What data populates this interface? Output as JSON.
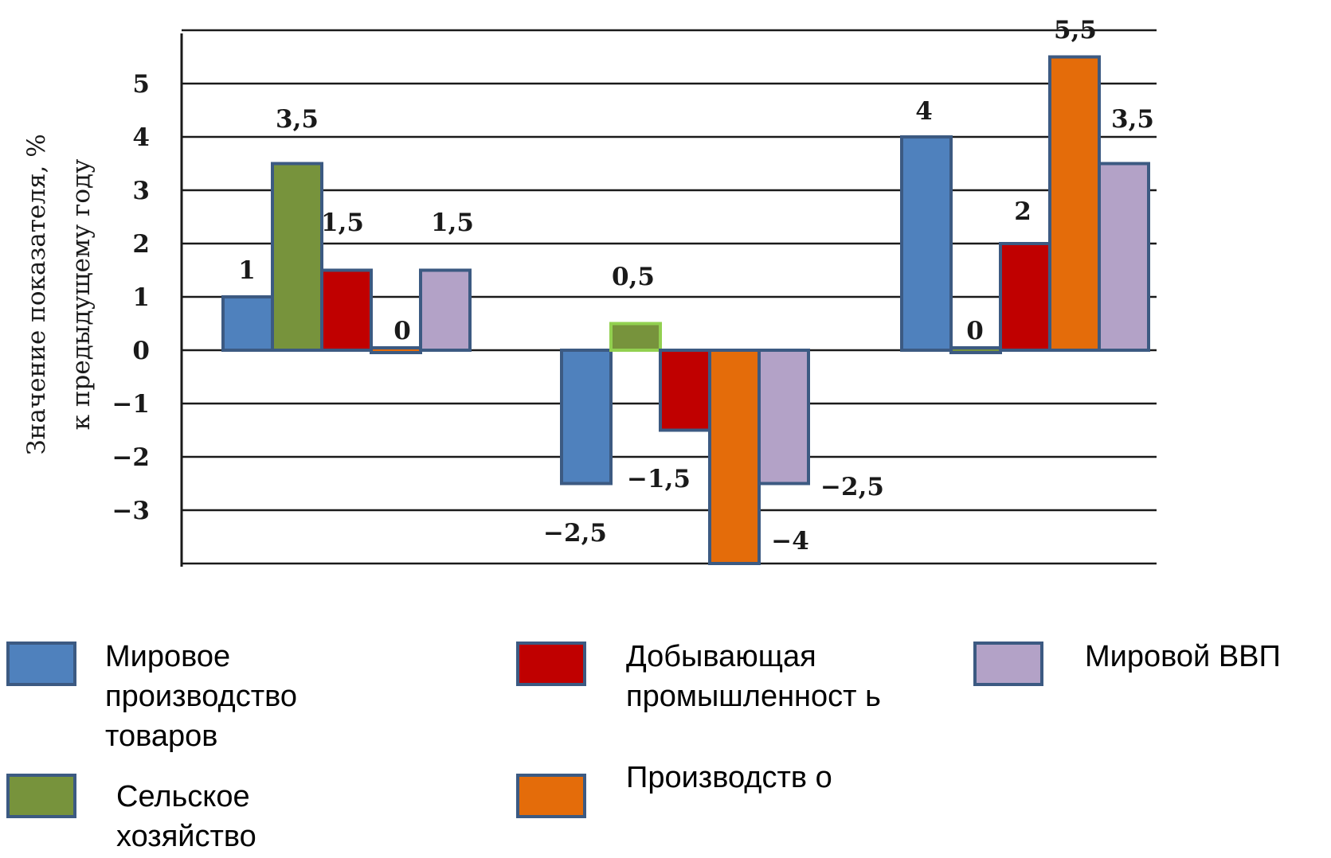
{
  "chart_data": {
    "type": "bar",
    "ylabel_lines": [
      "Значение показателя, %",
      "к предыдущему году"
    ],
    "yticks": [
      5,
      4,
      3,
      2,
      1,
      0,
      -1,
      -2,
      -3
    ],
    "ytick_labels": [
      "5",
      "4",
      "3",
      "2",
      "1",
      "0",
      "−1",
      "−2",
      "−3"
    ],
    "ylim": [
      -4,
      6
    ],
    "grid": true,
    "categories": [
      "",
      "",
      ""
    ],
    "series": [
      {
        "name": "Мировое производство товаров",
        "color": "#4f81bd",
        "values": [
          1,
          -2.5,
          4
        ],
        "labels": [
          "1",
          "−2,5",
          "4"
        ]
      },
      {
        "name": "Сельское хозяйство",
        "color": "#77933c",
        "values": [
          3.5,
          0.5,
          0
        ],
        "labels": [
          "3,5",
          "0,5",
          "0"
        ]
      },
      {
        "name": "Добывающая промышленность",
        "color": "#c00000",
        "values": [
          1.5,
          -1.5,
          2
        ],
        "labels": [
          "1,5",
          "−1,5",
          "2"
        ]
      },
      {
        "name": "Производство",
        "color": "#e46c0a",
        "values": [
          0,
          -4,
          5.5
        ],
        "labels": [
          "0",
          "−4",
          "5,5"
        ]
      },
      {
        "name": "Мировой ВВП",
        "color": "#b3a2c7",
        "values": [
          1.5,
          -2.5,
          3.5
        ],
        "labels": [
          "1,5",
          "−2,5",
          "3,5"
        ]
      }
    ],
    "legend_placement": "bottom"
  },
  "legend": {
    "items": [
      {
        "text": "Мировое производство товаров",
        "color": "#4f81bd"
      },
      {
        "text": "Сельское хозяйство",
        "color": "#77933c"
      },
      {
        "text": "Добывающая промышленност ь",
        "color": "#c00000"
      },
      {
        "text": "Производств о",
        "color": "#e46c0a"
      },
      {
        "text": "Мировой ВВП",
        "color": "#b3a2c7"
      }
    ]
  }
}
